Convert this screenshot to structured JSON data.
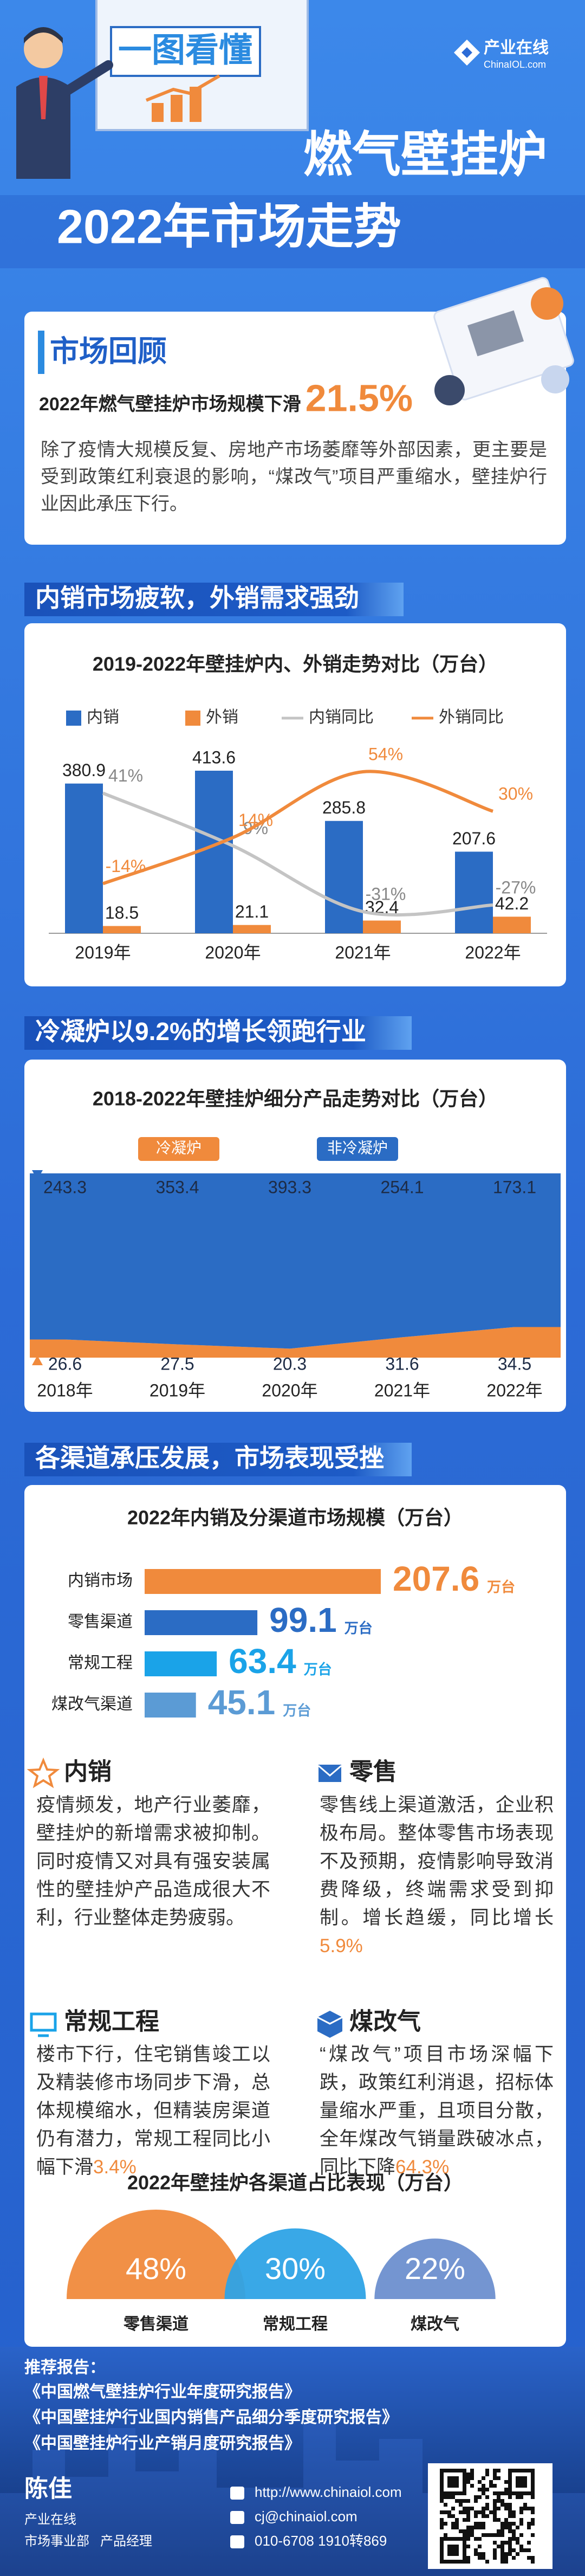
{
  "header": {
    "badge": "一图看懂",
    "title": "燃气壁挂炉",
    "subtitle": "2022年市场走势",
    "logo": {
      "name": "产业在线",
      "site": "ChinaIOL.com"
    }
  },
  "review": {
    "title": "市场回顾",
    "headline": "2022年燃气壁挂炉市场规模下滑",
    "headline_value": "21.5%",
    "text": "除了疫情大规模反复、房地产市场萎靡等外部因素，更主要是受到政策红利衰退的影响，“煤改气”项目严重缩水，壁挂炉行业因此承压下行。"
  },
  "sections": [
    "内销市场疲软，外销需求强劲",
    "冷凝炉以9.2%的增长领跑行业",
    "各渠道承压发展，市场表现受挫"
  ],
  "chart_data": [
    {
      "type": "combo",
      "title": "2019-2022年壁挂炉内、外销走势对比（万台）",
      "categories": [
        "2019年",
        "2020年",
        "2021年",
        "2022年"
      ],
      "series": [
        {
          "name": "内销",
          "type": "bar",
          "color": "#2b6cc4",
          "values": [
            380.9,
            413.6,
            285.8,
            207.6
          ]
        },
        {
          "name": "外销",
          "type": "bar",
          "color": "#f08a3c",
          "values": [
            18.5,
            21.1,
            32.4,
            42.2
          ]
        },
        {
          "name": "内销同比",
          "type": "line",
          "color": "#c4c4c4",
          "values": [
            41,
            9,
            -31,
            -27
          ],
          "value_labels": [
            "41%",
            "9%",
            "-31%",
            "-27%"
          ]
        },
        {
          "name": "外销同比",
          "type": "line",
          "color": "#f08a3c",
          "values": [
            -14,
            14,
            54,
            30
          ],
          "value_labels": [
            "-14%",
            "14%",
            "54%",
            "30%"
          ]
        }
      ]
    },
    {
      "type": "area",
      "stacking": "percent",
      "title": "2018-2022年壁挂炉细分产品走势对比（万台）",
      "categories": [
        "2018年",
        "2019年",
        "2020年",
        "2021年",
        "2022年"
      ],
      "series": [
        {
          "name": "冷凝炉",
          "color": "#f08a3c",
          "values": [
            26.6,
            27.5,
            20.3,
            31.6,
            34.5
          ]
        },
        {
          "name": "非冷凝炉",
          "color": "#2b6cc4",
          "values": [
            243.3,
            353.4,
            393.3,
            254.1,
            173.1
          ]
        }
      ]
    },
    {
      "type": "hbar",
      "title": "2022年内销及分渠道市场规模（万台）",
      "categories": [
        "内销市场",
        "零售渠道",
        "常规工程",
        "煤改气渠道"
      ],
      "values": [
        207.6,
        99.1,
        63.4,
        45.1
      ],
      "colors": [
        "#f08a3c",
        "#2b6cc4",
        "#1aa3e8",
        "#5b9bd5"
      ],
      "unit": "万台"
    },
    {
      "type": "semicircle",
      "title": "2022年壁挂炉各渠道占比表现（万台）",
      "categories": [
        "零售渠道",
        "常规工程",
        "煤改气"
      ],
      "values": [
        48,
        30,
        22
      ],
      "value_labels": [
        "48%",
        "30%",
        "22%"
      ],
      "colors": [
        "#f08a3c",
        "#2ea3e6",
        "#6d8fcf"
      ]
    }
  ],
  "channels": [
    {
      "title": "内销",
      "text": "疫情频发，地产行业萎靡，壁挂炉的新增需求被抑制。同时疫情又对具有强安装属性的壁挂炉产品造成很大不利，行业整体走势疲弱。"
    },
    {
      "title": "零售",
      "text": "零售线上渠道激活，企业积极布局。整体零售市场表现不及预期，疫情影响导致消费降级，终端需求受到抑制。增长趋缓，同比增长",
      "highlight": "5.9%"
    },
    {
      "title": "常规工程",
      "text": "楼市下行，住宅销售竣工以及精装修市场同步下滑，总体规模缩水，但精装房渠道仍有潜力，常规工程同比小幅下滑",
      "highlight": "3.4%"
    },
    {
      "title": "煤改气",
      "text": "“煤改气”项目市场深幅下跌，政策红利消退，招标体量缩水严重，且项目分散，全年煤改气销量跌破冰点，同比下降",
      "highlight": "64.3%"
    }
  ],
  "footer": {
    "recommend_title": "推荐报告：",
    "reports": [
      "《中国燃气壁挂炉行业年度研究报告》",
      "《中国壁挂炉行业国内销售产品细分季度研究报告》",
      "《中国壁挂炉行业产销月度研究报告》"
    ],
    "name": "陈佳",
    "org": "产业在线",
    "department": "市场事业部",
    "role": "产品经理",
    "contacts": [
      "http://www.chinaiol.com",
      "cj@chinaiol.com",
      "010-6708 1910转869"
    ]
  }
}
